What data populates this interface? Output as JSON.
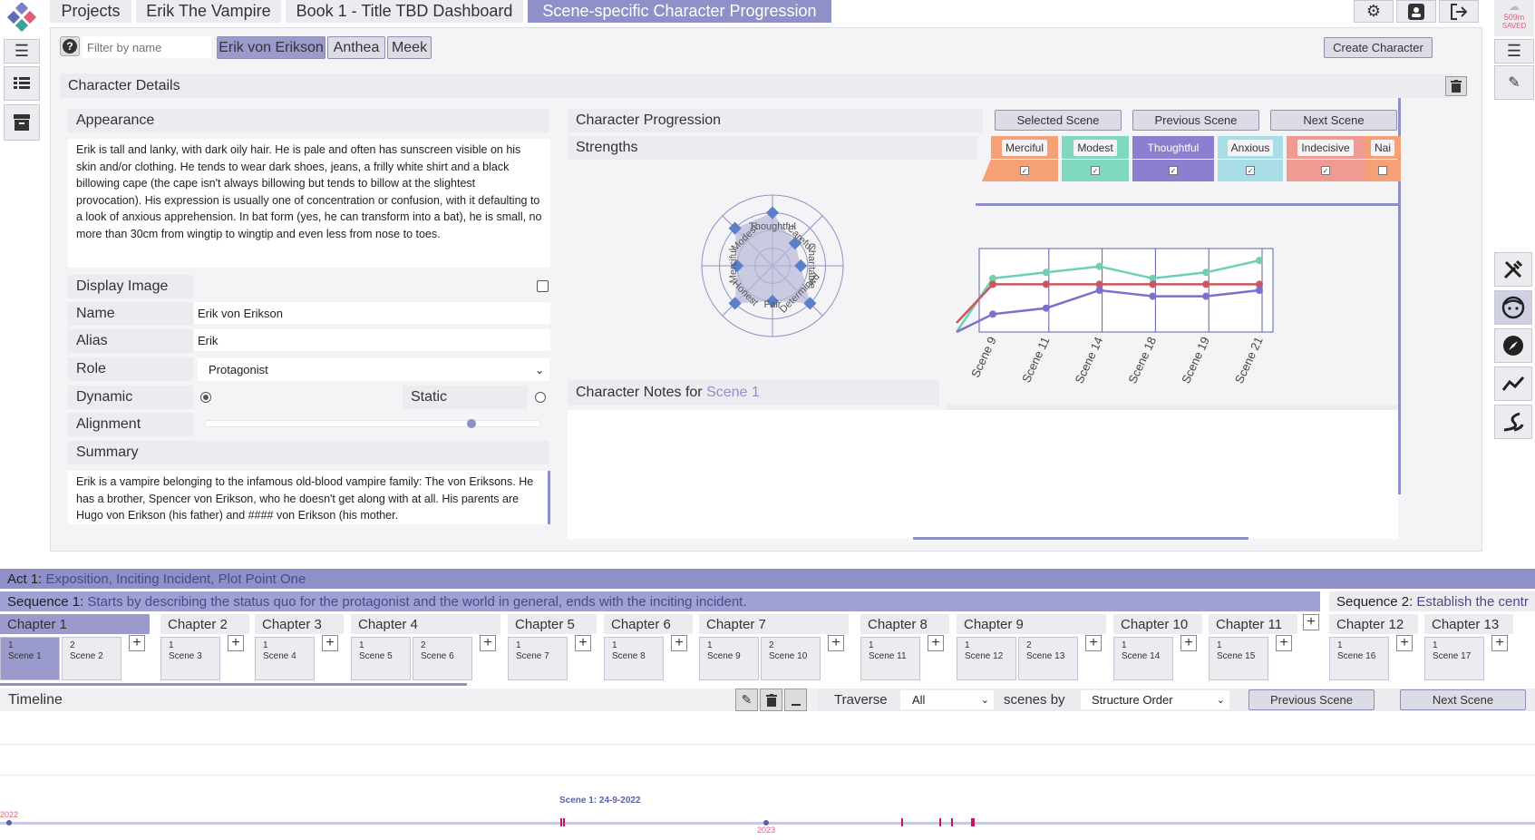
{
  "breadcrumbs": [
    "Projects",
    "Erik The Vampire",
    "Book 1 - Title TBD Dashboard",
    "Scene-specific Character Progression"
  ],
  "saved": {
    "size": "509m",
    "label": "SAVED"
  },
  "filter": {
    "placeholder": "Filter by name",
    "help": "?"
  },
  "characters": [
    "Erik von Erikson",
    "Anthea",
    "Meek"
  ],
  "create_character": "Create Character",
  "details": {
    "title": "Character Details",
    "appearance_label": "Appearance",
    "appearance_text": "Erik is tall and lanky, with dark oily hair. He is pale and often has sunscreen visible on his skin and/or clothing. He tends to wear dark shoes, jeans, a frilly white shirt and a black billowing cape (the cape isn't always billowing but tends to billow at the slightest provocation). His expression is usually one of concentration or confusion, with it defaulting to a look of anxious apprehension. In bat form (yes, he can transform into a bat), he is small, no more than 30cm from wingtip to wingtip and even less from nose to toes.",
    "display_image_label": "Display Image",
    "name_label": "Name",
    "name_value": "Erik von Erikson",
    "alias_label": "Alias",
    "alias_value": "Erik",
    "role_label": "Role",
    "role_value": "Protagonist",
    "dynamic_label": "Dynamic",
    "static_label": "Static",
    "alignment_label": "Alignment",
    "alignment_value": 0.8,
    "summary_label": "Summary",
    "summary_text": "Erik is a vampire belonging to the infamous old-blood vampire family: The von Eriksons. He has a brother, Spencer von Erikson, who he doesn't get along with at all. His parents are Hugo von Erikson (his father) and #### von Erikson (his mother."
  },
  "progression": {
    "title": "Character Progression",
    "strengths_label": "Strengths",
    "buttons": [
      "Selected Scene",
      "Previous Scene",
      "Next Scene"
    ],
    "traits": [
      {
        "name": "Merciful",
        "color": "#f5a077",
        "checked": true
      },
      {
        "name": "Modest",
        "color": "#7fd8bf",
        "checked": true
      },
      {
        "name": "Thoughtful",
        "color": "#8b80d0",
        "checked": true
      },
      {
        "name": "Anxious",
        "color": "#a8dde8",
        "checked": true
      },
      {
        "name": "Indecisive",
        "color": "#f09a94",
        "checked": true
      },
      {
        "name": "Nai",
        "color": "#f5a077",
        "checked": false
      }
    ],
    "radar_labels": [
      "Thoughtful",
      "Careful",
      "Charitable",
      "Determined",
      "Fair",
      "Honest",
      "Merciful",
      "Modest"
    ],
    "notes_label": "Character Notes for",
    "notes_scene": "Scene 1"
  },
  "chart_data": [
    {
      "type": "radar",
      "categories": [
        "Thoughtful",
        "Careful",
        "Charitable",
        "Determined",
        "Fair",
        "Honest",
        "Merciful",
        "Modest"
      ],
      "values": [
        0.75,
        0.45,
        0.4,
        0.75,
        0.5,
        0.75,
        0.5,
        0.75
      ]
    },
    {
      "type": "line",
      "categories": [
        "Scene 9",
        "Scene 11",
        "Scene 14",
        "Scene 18",
        "Scene 19",
        "Scene 21"
      ],
      "series": [
        {
          "color": "#6fcfb2",
          "values": [
            9,
            10,
            11,
            9,
            10,
            12
          ]
        },
        {
          "color": "#c9575f",
          "values": [
            8,
            8,
            8,
            8,
            8,
            8
          ]
        },
        {
          "color": "#7b6fcf",
          "values": [
            3,
            4,
            7,
            6,
            6,
            7
          ]
        }
      ]
    }
  ],
  "act": {
    "label": "Act 1:",
    "text": "Exposition, Inciting Incident, Plot Point One"
  },
  "sequences": [
    {
      "label": "Sequence 1:",
      "text": "Starts by describing the status quo for the protagonist and the world in general, ends with the inciting incident."
    },
    {
      "label": "Sequence 2:",
      "text": "Establish the centr"
    }
  ],
  "chapters": [
    {
      "name": "Chapter 1",
      "scenes": [
        {
          "num": "1",
          "name": "Scene 1"
        },
        {
          "num": "2",
          "name": "Scene 2"
        }
      ]
    },
    {
      "name": "Chapter 2",
      "scenes": [
        {
          "num": "1",
          "name": "Scene 3"
        }
      ]
    },
    {
      "name": "Chapter 3",
      "scenes": [
        {
          "num": "1",
          "name": "Scene 4"
        }
      ]
    },
    {
      "name": "Chapter 4",
      "scenes": [
        {
          "num": "1",
          "name": "Scene 5"
        },
        {
          "num": "2",
          "name": "Scene 6"
        }
      ]
    },
    {
      "name": "Chapter 5",
      "scenes": [
        {
          "num": "1",
          "name": "Scene 7"
        }
      ]
    },
    {
      "name": "Chapter 6",
      "scenes": [
        {
          "num": "1",
          "name": "Scene 8"
        }
      ]
    },
    {
      "name": "Chapter 7",
      "scenes": [
        {
          "num": "1",
          "name": "Scene 9"
        },
        {
          "num": "2",
          "name": "Scene 10"
        }
      ]
    },
    {
      "name": "Chapter 8",
      "scenes": [
        {
          "num": "1",
          "name": "Scene 11"
        }
      ]
    },
    {
      "name": "Chapter 9",
      "scenes": [
        {
          "num": "1",
          "name": "Scene 12"
        },
        {
          "num": "2",
          "name": "Scene 13"
        }
      ]
    },
    {
      "name": "Chapter 10",
      "scenes": [
        {
          "num": "1",
          "name": "Scene 14"
        }
      ]
    },
    {
      "name": "Chapter 11",
      "scenes": [
        {
          "num": "1",
          "name": "Scene 15"
        }
      ]
    },
    {
      "name": "Chapter 12",
      "scenes": [
        {
          "num": "1",
          "name": "Scene 16"
        }
      ]
    },
    {
      "name": "Chapter 13",
      "scenes": [
        {
          "num": "1",
          "name": "Scene 17"
        }
      ]
    }
  ],
  "plus": "+",
  "timeline": {
    "label": "Timeline",
    "traverse_label": "Traverse",
    "traverse_value": "All",
    "scenes_by_label": "scenes by",
    "order_value": "Structure Order",
    "prev": "Previous Scene",
    "next": "Next Scene",
    "marker_label": "Scene 1: 24-9-2022",
    "year_start": "2022",
    "year_mid": "2023"
  }
}
